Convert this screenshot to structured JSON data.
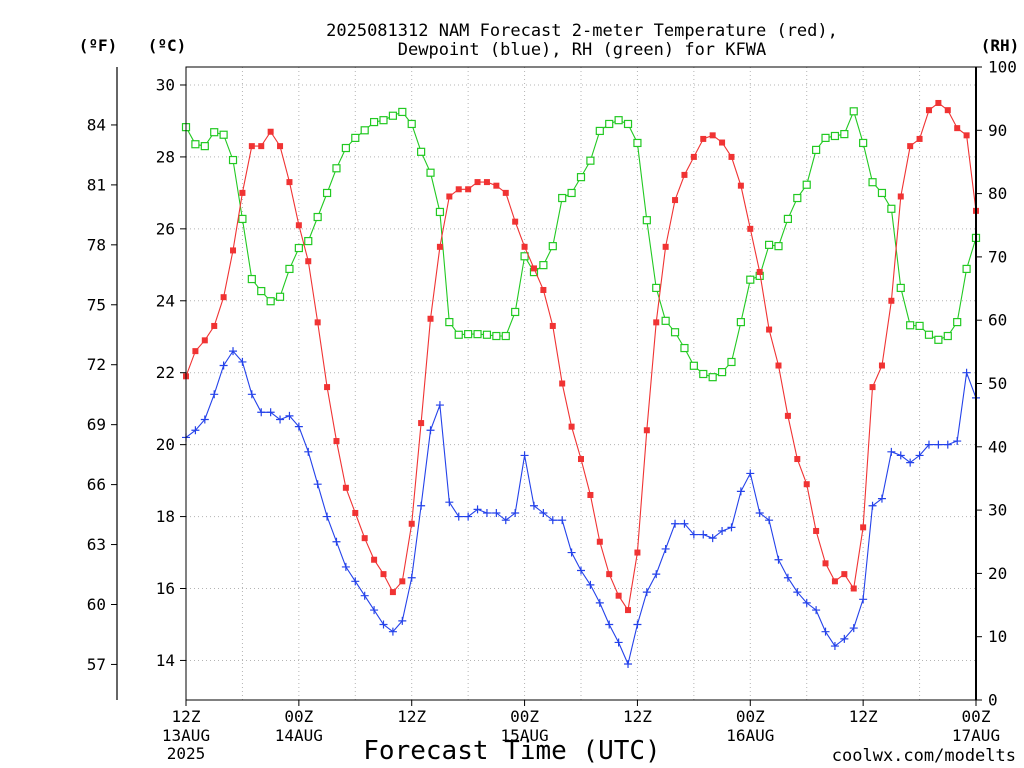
{
  "credit": "coolwx.com/modelts",
  "colors": {
    "credit": "#e85757"
  },
  "chart_data": {
    "type": "line",
    "title_lines": [
      "2025081312 NAM Forecast 2-meter Temperature (red),",
      "Dewpoint (blue), RH (green) for KFWA"
    ],
    "xlabel": "Forecast Time (UTC)",
    "ylabels": {
      "fahrenheit": "(ºF)",
      "celsius": "(ºC)",
      "rh": "(RH)"
    },
    "grid": true,
    "xlim": [
      "2025-08-13T12:00Z",
      "2025-08-17T00:00Z"
    ],
    "ylim_celsius": [
      12.9,
      30.5
    ],
    "ylim_rh": [
      0,
      100
    ],
    "y_ticks_celsius": [
      30,
      28,
      26,
      24,
      22,
      20,
      18,
      16,
      14
    ],
    "y_ticks_fahrenheit": [
      84,
      81,
      78,
      75,
      72,
      69,
      66,
      63,
      60,
      57
    ],
    "y_ticks_rh": [
      100,
      90,
      80,
      70,
      60,
      50,
      40,
      30,
      20,
      10,
      0
    ],
    "x_ticks": [
      {
        "at": "2025-08-13T12:00Z",
        "time": "12Z",
        "date": "13AUG",
        "year": "2025"
      },
      {
        "at": "2025-08-14T00:00Z",
        "time": "00Z",
        "date": "14AUG"
      },
      {
        "at": "2025-08-14T12:00Z",
        "time": "12Z"
      },
      {
        "at": "2025-08-15T00:00Z",
        "time": "00Z",
        "date": "15AUG"
      },
      {
        "at": "2025-08-15T12:00Z",
        "time": "12Z"
      },
      {
        "at": "2025-08-16T00:00Z",
        "time": "00Z",
        "date": "16AUG"
      },
      {
        "at": "2025-08-16T12:00Z",
        "time": "12Z"
      },
      {
        "at": "2025-08-17T00:00Z",
        "time": "00Z",
        "date": "17AUG"
      }
    ],
    "x": [
      "2025-08-13T12:00Z",
      "2025-08-13T13:00Z",
      "2025-08-13T14:00Z",
      "2025-08-13T15:00Z",
      "2025-08-13T16:00Z",
      "2025-08-13T17:00Z",
      "2025-08-13T18:00Z",
      "2025-08-13T19:00Z",
      "2025-08-13T20:00Z",
      "2025-08-13T21:00Z",
      "2025-08-13T22:00Z",
      "2025-08-13T23:00Z",
      "2025-08-14T00:00Z",
      "2025-08-14T01:00Z",
      "2025-08-14T02:00Z",
      "2025-08-14T03:00Z",
      "2025-08-14T04:00Z",
      "2025-08-14T05:00Z",
      "2025-08-14T06:00Z",
      "2025-08-14T07:00Z",
      "2025-08-14T08:00Z",
      "2025-08-14T09:00Z",
      "2025-08-14T10:00Z",
      "2025-08-14T11:00Z",
      "2025-08-14T12:00Z",
      "2025-08-14T13:00Z",
      "2025-08-14T14:00Z",
      "2025-08-14T15:00Z",
      "2025-08-14T16:00Z",
      "2025-08-14T17:00Z",
      "2025-08-14T18:00Z",
      "2025-08-14T19:00Z",
      "2025-08-14T20:00Z",
      "2025-08-14T21:00Z",
      "2025-08-14T22:00Z",
      "2025-08-14T23:00Z",
      "2025-08-15T00:00Z",
      "2025-08-15T01:00Z",
      "2025-08-15T02:00Z",
      "2025-08-15T03:00Z",
      "2025-08-15T04:00Z",
      "2025-08-15T05:00Z",
      "2025-08-15T06:00Z",
      "2025-08-15T07:00Z",
      "2025-08-15T08:00Z",
      "2025-08-15T09:00Z",
      "2025-08-15T10:00Z",
      "2025-08-15T11:00Z",
      "2025-08-15T12:00Z",
      "2025-08-15T13:00Z",
      "2025-08-15T14:00Z",
      "2025-08-15T15:00Z",
      "2025-08-15T16:00Z",
      "2025-08-15T17:00Z",
      "2025-08-15T18:00Z",
      "2025-08-15T19:00Z",
      "2025-08-15T20:00Z",
      "2025-08-15T21:00Z",
      "2025-08-15T22:00Z",
      "2025-08-15T23:00Z",
      "2025-08-16T00:00Z",
      "2025-08-16T01:00Z",
      "2025-08-16T02:00Z",
      "2025-08-16T03:00Z",
      "2025-08-16T04:00Z",
      "2025-08-16T05:00Z",
      "2025-08-16T06:00Z",
      "2025-08-16T07:00Z",
      "2025-08-16T08:00Z",
      "2025-08-16T09:00Z",
      "2025-08-16T10:00Z",
      "2025-08-16T11:00Z",
      "2025-08-16T12:00Z",
      "2025-08-16T13:00Z",
      "2025-08-16T14:00Z",
      "2025-08-16T15:00Z",
      "2025-08-16T16:00Z",
      "2025-08-16T17:00Z",
      "2025-08-16T18:00Z",
      "2025-08-16T19:00Z",
      "2025-08-16T20:00Z",
      "2025-08-16T21:00Z",
      "2025-08-16T22:00Z",
      "2025-08-16T23:00Z",
      "2025-08-17T00:00Z"
    ],
    "series": {
      "rh": {
        "color": "#22c922",
        "values": [
          90.5,
          87.8,
          87.5,
          89.7,
          89.3,
          85.3,
          76.0,
          66.5,
          64.6,
          63.0,
          63.7,
          68.1,
          71.4,
          72.5,
          76.3,
          80.1,
          84.0,
          87.2,
          88.8,
          90.0,
          91.3,
          91.6,
          92.3,
          92.9,
          91.0,
          86.6,
          83.3,
          77.1,
          59.7,
          57.7,
          57.8,
          57.8,
          57.7,
          57.5,
          57.5,
          61.3,
          70.1,
          67.6,
          68.7,
          71.7,
          79.3,
          80.1,
          82.6,
          85.2,
          89.9,
          91.0,
          91.6,
          91.0,
          88.0,
          75.8,
          65.1,
          59.9,
          58.1,
          55.6,
          52.8,
          51.5,
          51.0,
          51.8,
          53.4,
          59.7,
          66.4,
          67.0,
          71.9,
          71.7,
          76.0,
          79.3,
          81.4,
          86.9,
          88.8,
          89.1,
          89.4,
          93.0,
          88.0,
          81.8,
          80.1,
          77.6,
          65.1,
          59.2,
          59.1,
          57.7,
          56.9,
          57.5,
          59.7,
          68.1,
          73.0
        ]
      },
      "temperature": {
        "color": "#f03333",
        "values": [
          21.9,
          22.6,
          22.9,
          23.3,
          24.1,
          25.4,
          27.0,
          28.3,
          28.3,
          28.7,
          28.3,
          27.3,
          26.1,
          25.1,
          23.4,
          21.6,
          20.1,
          18.8,
          18.1,
          17.4,
          16.8,
          16.4,
          15.9,
          16.2,
          17.8,
          20.6,
          23.5,
          25.5,
          26.9,
          27.1,
          27.1,
          27.3,
          27.3,
          27.2,
          27.0,
          26.2,
          25.5,
          24.9,
          24.3,
          23.3,
          21.7,
          20.5,
          19.6,
          18.6,
          17.3,
          16.4,
          15.8,
          15.4,
          17.0,
          20.4,
          23.4,
          25.5,
          26.8,
          27.5,
          28.0,
          28.5,
          28.6,
          28.4,
          28.0,
          27.2,
          26.0,
          24.8,
          23.2,
          22.2,
          20.8,
          19.6,
          18.9,
          17.6,
          16.7,
          16.2,
          16.4,
          16.0,
          17.7,
          21.6,
          22.2,
          24.0,
          26.9,
          28.3,
          28.5,
          29.3,
          29.5,
          29.3,
          28.8,
          28.6,
          26.5
        ]
      },
      "dewpoint": {
        "color": "#2442ea",
        "values": [
          20.2,
          20.4,
          20.7,
          21.4,
          22.2,
          22.6,
          22.3,
          21.4,
          20.9,
          20.9,
          20.7,
          20.8,
          20.5,
          19.8,
          18.9,
          18.0,
          17.3,
          16.6,
          16.2,
          15.8,
          15.4,
          15.0,
          14.8,
          15.1,
          16.3,
          18.3,
          20.4,
          21.1,
          18.4,
          18.0,
          18.0,
          18.2,
          18.1,
          18.1,
          17.9,
          18.1,
          19.7,
          18.3,
          18.1,
          17.9,
          17.9,
          17.0,
          16.5,
          16.1,
          15.6,
          15.0,
          14.5,
          13.9,
          15.0,
          15.9,
          16.4,
          17.1,
          17.8,
          17.8,
          17.5,
          17.5,
          17.4,
          17.6,
          17.7,
          18.7,
          19.2,
          18.1,
          17.9,
          16.8,
          16.3,
          15.9,
          15.6,
          15.4,
          14.8,
          14.4,
          14.6,
          14.9,
          15.7,
          18.3,
          18.5,
          19.8,
          19.7,
          19.5,
          19.7,
          20.0,
          20.0,
          20.0,
          20.1,
          22.0,
          21.3
        ]
      }
    }
  }
}
